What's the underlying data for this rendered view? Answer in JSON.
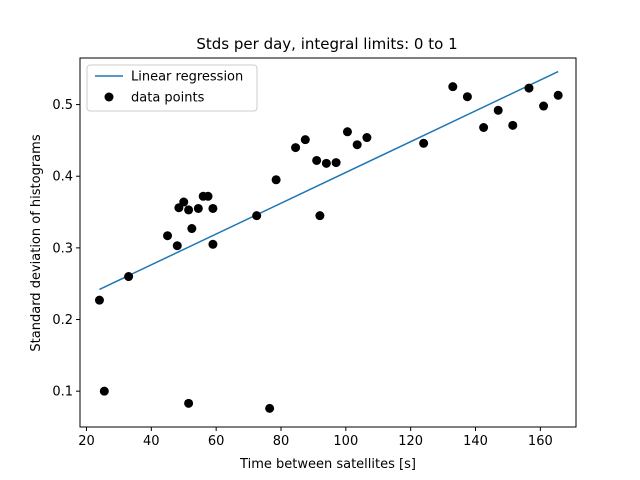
{
  "chart_data": {
    "type": "scatter",
    "title": "Stds per day, integral limits: 0 to 1",
    "xlabel": "Time between satellites [s]",
    "ylabel": "Standard deviation of histograms",
    "xlim": [
      18,
      171
    ],
    "ylim": [
      0.05,
      0.565
    ],
    "x_ticks": [
      20,
      40,
      60,
      80,
      100,
      120,
      140,
      160
    ],
    "y_ticks": [
      0.1,
      0.2,
      0.3,
      0.4,
      0.5
    ],
    "grid": false,
    "legend_position": "top-left",
    "series": [
      {
        "name": "Linear regression",
        "kind": "line",
        "color": "#1f77b4",
        "x": [
          24,
          165.5
        ],
        "y": [
          0.242,
          0.546
        ]
      },
      {
        "name": "data points",
        "kind": "scatter",
        "color": "#000000",
        "x": [
          24,
          25.5,
          33,
          45,
          48,
          48.5,
          50,
          51.5,
          52.5,
          54.5,
          56,
          57.5,
          59,
          59,
          51.5,
          72.5,
          76.5,
          78.5,
          84.5,
          87.5,
          91,
          92,
          94,
          97,
          100.5,
          103.5,
          106.5,
          124,
          133,
          137.5,
          142.5,
          147,
          151.5,
          156.5,
          161,
          165.5
        ],
        "y": [
          0.227,
          0.1,
          0.26,
          0.317,
          0.303,
          0.356,
          0.364,
          0.353,
          0.327,
          0.355,
          0.372,
          0.372,
          0.355,
          0.305,
          0.083,
          0.345,
          0.076,
          0.395,
          0.44,
          0.451,
          0.422,
          0.345,
          0.418,
          0.419,
          0.462,
          0.444,
          0.454,
          0.446,
          0.525,
          0.511,
          0.468,
          0.492,
          0.471,
          0.523,
          0.498,
          0.513
        ]
      }
    ]
  }
}
